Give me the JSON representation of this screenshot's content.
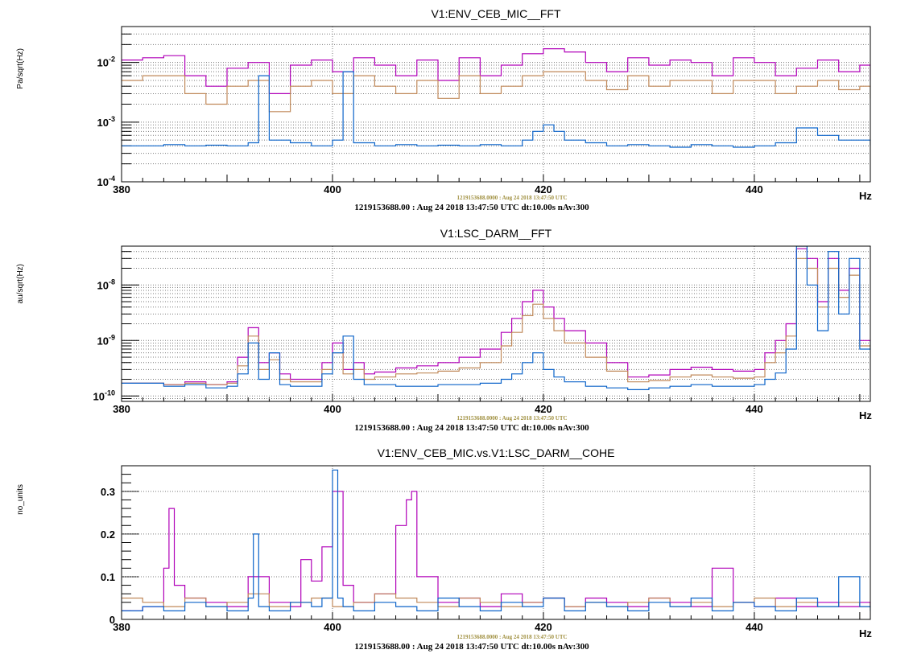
{
  "colors": {
    "magenta": "#b000b8",
    "tan": "#c0895a",
    "blue": "#0b63c9",
    "grid": "#7a7a7a"
  },
  "chart_data": [
    {
      "type": "line",
      "title": "V1:ENV_CEB_MIC__FFT",
      "ylabel": "Pa/sqrt(Hz)",
      "xlabel": "Hz",
      "xlim": [
        380,
        451
      ],
      "ylim": [
        0.0001,
        0.04
      ],
      "yscale": "log",
      "grid": true,
      "xticks": [
        "380",
        "400",
        "420",
        "440"
      ],
      "yticks": [
        {
          "base": "10",
          "exp": "-2",
          "value": 0.01
        },
        {
          "base": "10",
          "exp": "-3",
          "value": 0.001
        },
        {
          "base": "10",
          "exp": "-4",
          "value": 0.0001
        }
      ],
      "stamp_small": "1219153688.0000 : Aug 24 2018 13:47:50 UTC",
      "stamp": "1219153688.00 : Aug 24 2018 13:47:50 UTC dt:10.00s nAv:300",
      "series": [
        {
          "color": "#b000b8",
          "x": [
            380,
            382,
            384,
            386,
            388,
            390,
            392,
            394,
            396,
            398,
            400,
            402,
            404,
            406,
            408,
            410,
            412,
            414,
            416,
            418,
            420,
            422,
            424,
            426,
            428,
            430,
            432,
            434,
            436,
            438,
            440,
            442,
            444,
            446,
            448,
            450,
            451
          ],
          "y": [
            0.011,
            0.012,
            0.013,
            0.006,
            0.004,
            0.008,
            0.01,
            0.003,
            0.009,
            0.011,
            0.007,
            0.012,
            0.009,
            0.006,
            0.011,
            0.005,
            0.012,
            0.006,
            0.009,
            0.014,
            0.017,
            0.015,
            0.01,
            0.007,
            0.012,
            0.009,
            0.011,
            0.01,
            0.006,
            0.012,
            0.01,
            0.006,
            0.008,
            0.011,
            0.007,
            0.009,
            0.005
          ]
        },
        {
          "color": "#c0895a",
          "x": [
            380,
            382,
            384,
            386,
            388,
            390,
            392,
            394,
            396,
            398,
            400,
            402,
            404,
            406,
            408,
            410,
            412,
            414,
            416,
            418,
            420,
            422,
            424,
            426,
            428,
            430,
            432,
            434,
            436,
            438,
            440,
            442,
            444,
            446,
            448,
            450,
            451
          ],
          "y": [
            0.005,
            0.006,
            0.006,
            0.003,
            0.002,
            0.004,
            0.005,
            0.0015,
            0.004,
            0.005,
            0.003,
            0.006,
            0.004,
            0.003,
            0.005,
            0.0025,
            0.006,
            0.003,
            0.004,
            0.006,
            0.007,
            0.007,
            0.005,
            0.0035,
            0.006,
            0.004,
            0.005,
            0.005,
            0.003,
            0.005,
            0.005,
            0.003,
            0.004,
            0.005,
            0.0035,
            0.004,
            0.0025
          ]
        },
        {
          "color": "#0b63c9",
          "x": [
            380,
            382,
            384,
            386,
            388,
            390,
            392,
            393,
            394,
            396,
            398,
            400,
            401,
            402,
            404,
            406,
            408,
            410,
            412,
            414,
            416,
            418,
            419,
            420,
            421,
            422,
            424,
            426,
            428,
            430,
            432,
            434,
            436,
            438,
            440,
            442,
            444,
            446,
            448,
            450,
            451
          ],
          "y": [
            0.0004,
            0.0004,
            0.00042,
            0.0004,
            0.00041,
            0.0004,
            0.00045,
            0.006,
            0.0005,
            0.00045,
            0.0004,
            0.0005,
            0.007,
            0.00045,
            0.0004,
            0.00042,
            0.0004,
            0.00041,
            0.0004,
            0.00042,
            0.0004,
            0.0005,
            0.0007,
            0.0009,
            0.0007,
            0.0005,
            0.00045,
            0.0004,
            0.00042,
            0.0004,
            0.00038,
            0.00042,
            0.0004,
            0.00038,
            0.0004,
            0.00045,
            0.0008,
            0.0006,
            0.0005,
            0.0005,
            0.0004
          ]
        }
      ]
    },
    {
      "type": "line",
      "title": "V1:LSC_DARM__FFT",
      "ylabel": "au/sqrt(Hz)",
      "xlabel": "Hz",
      "xlim": [
        380,
        451
      ],
      "ylim": [
        8e-11,
        5e-08
      ],
      "yscale": "log",
      "grid": true,
      "xticks": [
        "380",
        "400",
        "420",
        "440"
      ],
      "yticks": [
        {
          "base": "10",
          "exp": "-8",
          "value": 1e-08
        },
        {
          "base": "10",
          "exp": "-9",
          "value": 1e-09
        },
        {
          "base": "10",
          "exp": "-10",
          "value": 1e-10
        }
      ],
      "stamp_small": "1219153688.0000 : Aug 24 2018 13:47:50 UTC",
      "stamp": "1219153688.00 : Aug 24 2018 13:47:50 UTC dt:10.00s nAv:300",
      "series": [
        {
          "color": "#b000b8",
          "x": [
            380,
            384,
            386,
            388,
            390,
            391,
            392,
            393,
            394,
            395,
            396,
            398,
            399,
            400,
            401,
            402,
            403,
            404,
            406,
            408,
            410,
            412,
            414,
            416,
            417,
            418,
            419,
            420,
            421,
            422,
            424,
            426,
            428,
            430,
            432,
            434,
            436,
            438,
            440,
            441,
            442,
            443,
            444,
            445,
            446,
            447,
            448,
            449,
            450,
            451
          ],
          "y": [
            1.7e-10,
            1.6e-10,
            1.8e-10,
            1.6e-10,
            1.8e-10,
            5e-10,
            1.7e-09,
            4e-10,
            6e-10,
            2.5e-10,
            2e-10,
            2e-10,
            4e-10,
            9e-10,
            3e-10,
            4e-10,
            2.5e-10,
            2.7e-10,
            3.2e-10,
            3.5e-10,
            4e-10,
            5e-10,
            7e-10,
            1.4e-09,
            2.5e-09,
            5e-09,
            8e-09,
            4e-09,
            2.5e-09,
            1.5e-09,
            9e-10,
            4e-10,
            2.2e-10,
            2.4e-10,
            3e-10,
            3.3e-10,
            3e-10,
            2.8e-10,
            3e-10,
            6e-10,
            1e-09,
            2e-09,
            4.5e-08,
            3e-08,
            5e-09,
            3e-08,
            8e-09,
            2e-08,
            1e-09,
            1e-09
          ]
        },
        {
          "color": "#c0895a",
          "x": [
            380,
            384,
            386,
            388,
            390,
            391,
            392,
            393,
            394,
            395,
            396,
            398,
            399,
            400,
            401,
            402,
            403,
            404,
            406,
            408,
            410,
            412,
            414,
            416,
            417,
            418,
            419,
            420,
            421,
            422,
            424,
            426,
            428,
            430,
            432,
            434,
            436,
            438,
            440,
            441,
            442,
            443,
            444,
            445,
            446,
            447,
            448,
            449,
            450,
            451
          ],
          "y": [
            1.7e-10,
            1.6e-10,
            1.7e-10,
            1.6e-10,
            1.7e-10,
            3.5e-10,
            1.2e-09,
            3e-10,
            4.5e-10,
            2e-10,
            1.8e-10,
            1.8e-10,
            3e-10,
            6e-10,
            2.5e-10,
            3e-10,
            2e-10,
            2.2e-10,
            2.5e-10,
            2.6e-10,
            2.8e-10,
            3.2e-10,
            4e-10,
            8e-10,
            1.4e-09,
            2.8e-09,
            4.5e-09,
            2.5e-09,
            1.5e-09,
            9e-10,
            5e-10,
            2.8e-10,
            1.8e-10,
            1.9e-10,
            2.2e-10,
            2.4e-10,
            2.2e-10,
            2.1e-10,
            2.2e-10,
            4e-10,
            6e-10,
            1.2e-09,
            3e-08,
            2e-08,
            4e-09,
            2e-08,
            6e-09,
            1.5e-08,
            8e-10,
            8e-10
          ]
        },
        {
          "color": "#0b63c9",
          "x": [
            380,
            384,
            386,
            388,
            390,
            391,
            392,
            393,
            394,
            395,
            396,
            398,
            399,
            400,
            401,
            402,
            403,
            404,
            406,
            408,
            410,
            412,
            414,
            416,
            417,
            418,
            419,
            420,
            421,
            422,
            424,
            426,
            428,
            430,
            432,
            434,
            436,
            438,
            440,
            441,
            442,
            443,
            444,
            445,
            446,
            447,
            448,
            449,
            450,
            451
          ],
          "y": [
            1.7e-10,
            1.5e-10,
            1.6e-10,
            1.4e-10,
            1.5e-10,
            2.5e-10,
            9e-10,
            2e-10,
            6e-10,
            1.6e-10,
            1.5e-10,
            1.5e-10,
            2.5e-10,
            6e-10,
            1.2e-09,
            2e-10,
            1.6e-10,
            1.6e-10,
            1.5e-10,
            1.5e-10,
            1.6e-10,
            1.6e-10,
            1.7e-10,
            2e-10,
            2.5e-10,
            4e-10,
            6e-10,
            3e-10,
            2.2e-10,
            1.8e-10,
            1.5e-10,
            1.4e-10,
            1.3e-10,
            1.4e-10,
            1.5e-10,
            1.6e-10,
            1.5e-10,
            1.5e-10,
            1.6e-10,
            2e-10,
            2.6e-10,
            7e-10,
            5e-08,
            1e-08,
            1.5e-09,
            4e-08,
            3e-09,
            3e-08,
            7e-10,
            1e-09
          ]
        }
      ]
    },
    {
      "type": "line",
      "title": "V1:ENV_CEB_MIC.vs.V1:LSC_DARM__COHE",
      "ylabel": "no_units",
      "xlabel": "Hz",
      "xlim": [
        380,
        451
      ],
      "ylim": [
        0,
        0.36
      ],
      "yscale": "linear",
      "grid": true,
      "xticks": [
        "380",
        "400",
        "420",
        "440"
      ],
      "yticks": [
        {
          "label": "0.3",
          "value": 0.3
        },
        {
          "label": "0.2",
          "value": 0.2
        },
        {
          "label": "0.1",
          "value": 0.1
        },
        {
          "label": "0",
          "value": 0
        }
      ],
      "stamp_small": "1219153688.0000 : Aug 24 2018 13:47:50 UTC",
      "stamp": "1219153688.00 : Aug 24 2018 13:47:50 UTC dt:10.00s nAv:300",
      "series": [
        {
          "color": "#b000b8",
          "x": [
            380,
            382,
            384,
            384.5,
            385,
            386,
            388,
            390,
            392,
            394,
            396,
            397,
            398,
            399,
            400,
            401,
            402,
            404,
            406,
            407,
            407.5,
            408,
            410,
            412,
            414,
            416,
            418,
            420,
            422,
            424,
            426,
            428,
            430,
            432,
            434,
            436,
            438,
            440,
            442,
            444,
            446,
            448,
            450,
            451
          ],
          "y": [
            0.02,
            0.03,
            0.12,
            0.26,
            0.08,
            0.05,
            0.04,
            0.03,
            0.1,
            0.04,
            0.03,
            0.14,
            0.09,
            0.17,
            0.3,
            0.08,
            0.04,
            0.06,
            0.22,
            0.28,
            0.3,
            0.1,
            0.04,
            0.05,
            0.03,
            0.06,
            0.04,
            0.05,
            0.03,
            0.05,
            0.04,
            0.03,
            0.05,
            0.04,
            0.03,
            0.12,
            0.04,
            0.03,
            0.05,
            0.03,
            0.04,
            0.03,
            0.04,
            0.03
          ]
        },
        {
          "color": "#c0895a",
          "x": [
            380,
            382,
            384,
            386,
            388,
            390,
            392,
            394,
            396,
            398,
            400,
            402,
            404,
            406,
            408,
            410,
            412,
            414,
            416,
            418,
            420,
            422,
            424,
            426,
            428,
            430,
            432,
            434,
            436,
            438,
            440,
            442,
            444,
            446,
            448,
            450,
            451
          ],
          "y": [
            0.05,
            0.04,
            0.03,
            0.05,
            0.03,
            0.04,
            0.06,
            0.03,
            0.04,
            0.05,
            0.03,
            0.04,
            0.06,
            0.05,
            0.04,
            0.03,
            0.05,
            0.04,
            0.03,
            0.04,
            0.05,
            0.03,
            0.04,
            0.03,
            0.04,
            0.05,
            0.03,
            0.04,
            0.03,
            0.04,
            0.05,
            0.03,
            0.04,
            0.03,
            0.04,
            0.03,
            0.04
          ]
        },
        {
          "color": "#0b63c9",
          "x": [
            380,
            382,
            384,
            386,
            388,
            390,
            392,
            392.5,
            393,
            394,
            396,
            398,
            399,
            400,
            400.5,
            401,
            402,
            404,
            406,
            408,
            410,
            412,
            414,
            416,
            418,
            420,
            422,
            424,
            426,
            428,
            430,
            432,
            434,
            436,
            438,
            440,
            442,
            444,
            446,
            448,
            450,
            451
          ],
          "y": [
            0.02,
            0.03,
            0.02,
            0.04,
            0.03,
            0.02,
            0.05,
            0.2,
            0.03,
            0.02,
            0.04,
            0.03,
            0.05,
            0.35,
            0.05,
            0.03,
            0.02,
            0.04,
            0.03,
            0.02,
            0.05,
            0.03,
            0.02,
            0.04,
            0.03,
            0.05,
            0.02,
            0.04,
            0.03,
            0.02,
            0.04,
            0.03,
            0.05,
            0.02,
            0.04,
            0.03,
            0.02,
            0.05,
            0.03,
            0.1,
            0.03,
            0.02
          ]
        }
      ]
    }
  ]
}
